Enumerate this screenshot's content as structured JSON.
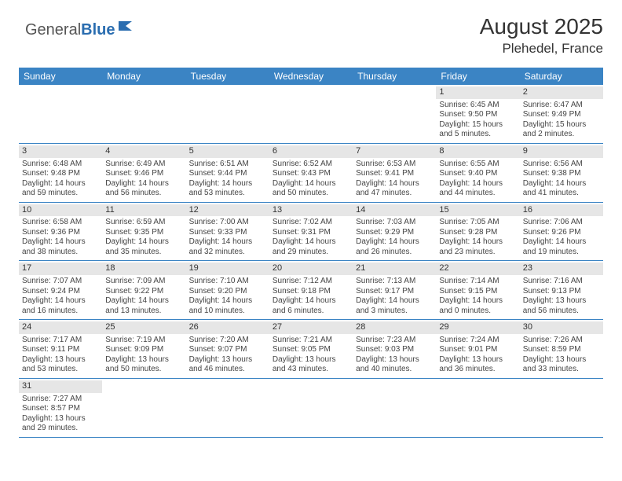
{
  "logo": {
    "word1": "General",
    "word2": "Blue"
  },
  "title": "August 2025",
  "location": "Plehedel, France",
  "colors": {
    "header_bg": "#3b84c4",
    "header_text": "#ffffff",
    "daynum_bg": "#e6e6e6",
    "week_border": "#3b84c4",
    "logo_blue": "#2a6db0"
  },
  "daynames": [
    "Sunday",
    "Monday",
    "Tuesday",
    "Wednesday",
    "Thursday",
    "Friday",
    "Saturday"
  ],
  "weeks": [
    [
      {
        "empty": true
      },
      {
        "empty": true
      },
      {
        "empty": true
      },
      {
        "empty": true
      },
      {
        "empty": true
      },
      {
        "num": "1",
        "sunrise": "Sunrise: 6:45 AM",
        "sunset": "Sunset: 9:50 PM",
        "d1": "Daylight: 15 hours",
        "d2": "and 5 minutes."
      },
      {
        "num": "2",
        "sunrise": "Sunrise: 6:47 AM",
        "sunset": "Sunset: 9:49 PM",
        "d1": "Daylight: 15 hours",
        "d2": "and 2 minutes."
      }
    ],
    [
      {
        "num": "3",
        "sunrise": "Sunrise: 6:48 AM",
        "sunset": "Sunset: 9:48 PM",
        "d1": "Daylight: 14 hours",
        "d2": "and 59 minutes."
      },
      {
        "num": "4",
        "sunrise": "Sunrise: 6:49 AM",
        "sunset": "Sunset: 9:46 PM",
        "d1": "Daylight: 14 hours",
        "d2": "and 56 minutes."
      },
      {
        "num": "5",
        "sunrise": "Sunrise: 6:51 AM",
        "sunset": "Sunset: 9:44 PM",
        "d1": "Daylight: 14 hours",
        "d2": "and 53 minutes."
      },
      {
        "num": "6",
        "sunrise": "Sunrise: 6:52 AM",
        "sunset": "Sunset: 9:43 PM",
        "d1": "Daylight: 14 hours",
        "d2": "and 50 minutes."
      },
      {
        "num": "7",
        "sunrise": "Sunrise: 6:53 AM",
        "sunset": "Sunset: 9:41 PM",
        "d1": "Daylight: 14 hours",
        "d2": "and 47 minutes."
      },
      {
        "num": "8",
        "sunrise": "Sunrise: 6:55 AM",
        "sunset": "Sunset: 9:40 PM",
        "d1": "Daylight: 14 hours",
        "d2": "and 44 minutes."
      },
      {
        "num": "9",
        "sunrise": "Sunrise: 6:56 AM",
        "sunset": "Sunset: 9:38 PM",
        "d1": "Daylight: 14 hours",
        "d2": "and 41 minutes."
      }
    ],
    [
      {
        "num": "10",
        "sunrise": "Sunrise: 6:58 AM",
        "sunset": "Sunset: 9:36 PM",
        "d1": "Daylight: 14 hours",
        "d2": "and 38 minutes."
      },
      {
        "num": "11",
        "sunrise": "Sunrise: 6:59 AM",
        "sunset": "Sunset: 9:35 PM",
        "d1": "Daylight: 14 hours",
        "d2": "and 35 minutes."
      },
      {
        "num": "12",
        "sunrise": "Sunrise: 7:00 AM",
        "sunset": "Sunset: 9:33 PM",
        "d1": "Daylight: 14 hours",
        "d2": "and 32 minutes."
      },
      {
        "num": "13",
        "sunrise": "Sunrise: 7:02 AM",
        "sunset": "Sunset: 9:31 PM",
        "d1": "Daylight: 14 hours",
        "d2": "and 29 minutes."
      },
      {
        "num": "14",
        "sunrise": "Sunrise: 7:03 AM",
        "sunset": "Sunset: 9:29 PM",
        "d1": "Daylight: 14 hours",
        "d2": "and 26 minutes."
      },
      {
        "num": "15",
        "sunrise": "Sunrise: 7:05 AM",
        "sunset": "Sunset: 9:28 PM",
        "d1": "Daylight: 14 hours",
        "d2": "and 23 minutes."
      },
      {
        "num": "16",
        "sunrise": "Sunrise: 7:06 AM",
        "sunset": "Sunset: 9:26 PM",
        "d1": "Daylight: 14 hours",
        "d2": "and 19 minutes."
      }
    ],
    [
      {
        "num": "17",
        "sunrise": "Sunrise: 7:07 AM",
        "sunset": "Sunset: 9:24 PM",
        "d1": "Daylight: 14 hours",
        "d2": "and 16 minutes."
      },
      {
        "num": "18",
        "sunrise": "Sunrise: 7:09 AM",
        "sunset": "Sunset: 9:22 PM",
        "d1": "Daylight: 14 hours",
        "d2": "and 13 minutes."
      },
      {
        "num": "19",
        "sunrise": "Sunrise: 7:10 AM",
        "sunset": "Sunset: 9:20 PM",
        "d1": "Daylight: 14 hours",
        "d2": "and 10 minutes."
      },
      {
        "num": "20",
        "sunrise": "Sunrise: 7:12 AM",
        "sunset": "Sunset: 9:18 PM",
        "d1": "Daylight: 14 hours",
        "d2": "and 6 minutes."
      },
      {
        "num": "21",
        "sunrise": "Sunrise: 7:13 AM",
        "sunset": "Sunset: 9:17 PM",
        "d1": "Daylight: 14 hours",
        "d2": "and 3 minutes."
      },
      {
        "num": "22",
        "sunrise": "Sunrise: 7:14 AM",
        "sunset": "Sunset: 9:15 PM",
        "d1": "Daylight: 14 hours",
        "d2": "and 0 minutes."
      },
      {
        "num": "23",
        "sunrise": "Sunrise: 7:16 AM",
        "sunset": "Sunset: 9:13 PM",
        "d1": "Daylight: 13 hours",
        "d2": "and 56 minutes."
      }
    ],
    [
      {
        "num": "24",
        "sunrise": "Sunrise: 7:17 AM",
        "sunset": "Sunset: 9:11 PM",
        "d1": "Daylight: 13 hours",
        "d2": "and 53 minutes."
      },
      {
        "num": "25",
        "sunrise": "Sunrise: 7:19 AM",
        "sunset": "Sunset: 9:09 PM",
        "d1": "Daylight: 13 hours",
        "d2": "and 50 minutes."
      },
      {
        "num": "26",
        "sunrise": "Sunrise: 7:20 AM",
        "sunset": "Sunset: 9:07 PM",
        "d1": "Daylight: 13 hours",
        "d2": "and 46 minutes."
      },
      {
        "num": "27",
        "sunrise": "Sunrise: 7:21 AM",
        "sunset": "Sunset: 9:05 PM",
        "d1": "Daylight: 13 hours",
        "d2": "and 43 minutes."
      },
      {
        "num": "28",
        "sunrise": "Sunrise: 7:23 AM",
        "sunset": "Sunset: 9:03 PM",
        "d1": "Daylight: 13 hours",
        "d2": "and 40 minutes."
      },
      {
        "num": "29",
        "sunrise": "Sunrise: 7:24 AM",
        "sunset": "Sunset: 9:01 PM",
        "d1": "Daylight: 13 hours",
        "d2": "and 36 minutes."
      },
      {
        "num": "30",
        "sunrise": "Sunrise: 7:26 AM",
        "sunset": "Sunset: 8:59 PM",
        "d1": "Daylight: 13 hours",
        "d2": "and 33 minutes."
      }
    ],
    [
      {
        "num": "31",
        "sunrise": "Sunrise: 7:27 AM",
        "sunset": "Sunset: 8:57 PM",
        "d1": "Daylight: 13 hours",
        "d2": "and 29 minutes."
      },
      {
        "empty": true
      },
      {
        "empty": true
      },
      {
        "empty": true
      },
      {
        "empty": true
      },
      {
        "empty": true
      },
      {
        "empty": true
      }
    ]
  ]
}
